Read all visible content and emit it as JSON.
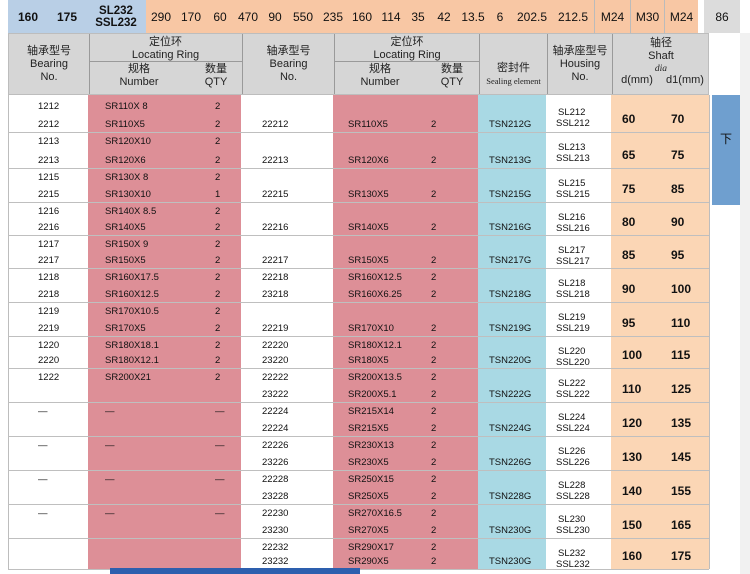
{
  "top_strip": {
    "cells": [
      "160",
      "175",
      "SL232",
      "SSL232",
      "290",
      "170",
      "60",
      "470",
      "90",
      "550",
      "235",
      "160",
      "114",
      "35",
      "42",
      "13.5",
      "6",
      "202.5",
      "212.5",
      "M24",
      "M30",
      "M24",
      "86"
    ]
  },
  "header": {
    "bearing_cn": "轴承型号",
    "bearing_en_1": "Bearing",
    "bearing_en_2": "No.",
    "ring_cn": "定位环",
    "ring_en": "Locating Ring",
    "spec_cn": "规格",
    "spec_en": "Number",
    "qty_cn": "数量",
    "qty_en": "QTY",
    "bearing2_cn": "轴承型号",
    "bearing2_en_1": "Bearing",
    "bearing2_en_2": "No.",
    "ring2_cn": "定位环",
    "ring2_en": "Locating Ring",
    "spec2_cn": "规格",
    "spec2_en": "Number",
    "qty2_cn": "数量",
    "qty2_en": "QTY",
    "seal_cn": "密封件",
    "seal_en": "Sealing element",
    "housing_cn": "轴承座型号",
    "housing_en_1": "Housing",
    "housing_en_2": "No.",
    "shaft_cn": "轴径",
    "shaft_en": "Shaft",
    "shaft_dia": "dia",
    "shaft_d": "d(mm)",
    "shaft_d1": "d1(mm)"
  },
  "sidebar_label": "下",
  "rows": [
    {
      "b1a": "1212",
      "r1a": "SR110X 8",
      "q1a": "2",
      "b1b": "2212",
      "r1b": "SR110X5",
      "q1b": "2",
      "b2a": "",
      "r2a": "",
      "q2a": "",
      "b2b": "22212",
      "r2b": "SR110X5",
      "q2b": "2",
      "seal": "TSN212G",
      "h1": "SL212",
      "h2": "SSL212",
      "d": "60",
      "d1": "70"
    },
    {
      "b1a": "1213",
      "r1a": "SR120X10",
      "q1a": "2",
      "b1b": "2213",
      "r1b": "SR120X6",
      "q1b": "2",
      "b2a": "",
      "r2a": "",
      "q2a": "",
      "b2b": "22213",
      "r2b": "SR120X6",
      "q2b": "2",
      "seal": "TSN213G",
      "h1": "SL213",
      "h2": "SSL213",
      "d": "65",
      "d1": "75"
    },
    {
      "b1a": "1215",
      "r1a": "SR130X 8",
      "q1a": "2",
      "b1b": "2215",
      "r1b": "SR130X10",
      "q1b": "1",
      "b2a": "",
      "r2a": "",
      "q2a": "",
      "b2b": "22215",
      "r2b": "SR130X5",
      "q2b": "2",
      "seal": "TSN215G",
      "h1": "SL215",
      "h2": "SSL215",
      "d": "75",
      "d1": "85"
    },
    {
      "b1a": "1216",
      "r1a": "SR140X 8.5",
      "q1a": "2",
      "b1b": "2216",
      "r1b": "SR140X5",
      "q1b": "2",
      "b2a": "",
      "r2a": "",
      "q2a": "",
      "b2b": "22216",
      "r2b": "SR140X5",
      "q2b": "2",
      "seal": "TSN216G",
      "h1": "SL216",
      "h2": "SSL216",
      "d": "80",
      "d1": "90"
    },
    {
      "b1a": "1217",
      "r1a": "SR150X 9",
      "q1a": "2",
      "b1b": "2217",
      "r1b": "SR150X5",
      "q1b": "2",
      "b2a": "",
      "r2a": "",
      "q2a": "",
      "b2b": "22217",
      "r2b": "SR150X5",
      "q2b": "2",
      "seal": "TSN217G",
      "h1": "SL217",
      "h2": "SSL217",
      "d": "85",
      "d1": "95"
    },
    {
      "b1a": "1218",
      "r1a": "SR160X17.5",
      "q1a": "2",
      "b1b": "2218",
      "r1b": "SR160X12.5",
      "q1b": "2",
      "b2a": "22218",
      "r2a": "SR160X12.5",
      "q2a": "2",
      "b2b": "23218",
      "r2b": "SR160X6.25",
      "q2b": "2",
      "seal": "TSN218G",
      "h1": "SL218",
      "h2": "SSL218",
      "d": "90",
      "d1": "100"
    },
    {
      "b1a": "1219",
      "r1a": "SR170X10.5",
      "q1a": "2",
      "b1b": "2219",
      "r1b": "SR170X5",
      "q1b": "2",
      "b2a": "",
      "r2a": "",
      "q2a": "",
      "b2b": "22219",
      "r2b": "SR170X10",
      "q2b": "2",
      "seal": "TSN219G",
      "h1": "SL219",
      "h2": "SSL219",
      "d": "95",
      "d1": "110"
    },
    {
      "b1a": "1220",
      "r1a": "SR180X18.1",
      "q1a": "2",
      "b1b": "2220",
      "r1b": "SR180X12.1",
      "q1b": "2",
      "b2a": "22220",
      "r2a": "SR180X12.1",
      "q2a": "2",
      "b2b": "23220",
      "r2b": "SR180X5",
      "q2b": "2",
      "seal": "TSN220G",
      "h1": "SL220",
      "h2": "SSL220",
      "d": "100",
      "d1": "115"
    },
    {
      "b1a": "1222",
      "r1a": "SR200X21",
      "q1a": "2",
      "b1b": "",
      "r1b": "",
      "q1b": "",
      "b2a": "22222",
      "r2a": "SR200X13.5",
      "q2a": "2",
      "b2b": "23222",
      "r2b": "SR200X5.1",
      "q2b": "2",
      "seal": "TSN222G",
      "h1": "SL222",
      "h2": "SSL222",
      "d": "110",
      "d1": "125"
    },
    {
      "b1a": "—",
      "r1a": "—",
      "q1a": "—",
      "b1b": "",
      "r1b": "",
      "q1b": "",
      "b2a": "22224",
      "r2a": "SR215X14",
      "q2a": "2",
      "b2b": "22224",
      "r2b": "SR215X5",
      "q2b": "2",
      "seal": "TSN224G",
      "h1": "SL224",
      "h2": "SSL224",
      "d": "120",
      "d1": "135"
    },
    {
      "b1a": "—",
      "r1a": "—",
      "q1a": "—",
      "b1b": "",
      "r1b": "",
      "q1b": "",
      "b2a": "22226",
      "r2a": "SR230X13",
      "q2a": "2",
      "b2b": "23226",
      "r2b": "SR230X5",
      "q2b": "2",
      "seal": "TSN226G",
      "h1": "SL226",
      "h2": "SSL226",
      "d": "130",
      "d1": "145"
    },
    {
      "b1a": "—",
      "r1a": "—",
      "q1a": "—",
      "b1b": "",
      "r1b": "",
      "q1b": "",
      "b2a": "22228",
      "r2a": "SR250X15",
      "q2a": "2",
      "b2b": "23228",
      "r2b": "SR250X5",
      "q2b": "2",
      "seal": "TSN228G",
      "h1": "SL228",
      "h2": "SSL228",
      "d": "140",
      "d1": "155"
    },
    {
      "b1a": "—",
      "r1a": "—",
      "q1a": "—",
      "b1b": "",
      "r1b": "",
      "q1b": "",
      "b2a": "22230",
      "r2a": "SR270X16.5",
      "q2a": "2",
      "b2b": "23230",
      "r2b": "SR270X5",
      "q2b": "2",
      "seal": "TSN230G",
      "h1": "SL230",
      "h2": "SSL230",
      "d": "150",
      "d1": "165"
    },
    {
      "b1a": "",
      "r1a": "",
      "q1a": "",
      "b1b": "",
      "r1b": "",
      "q1b": "",
      "b2a": "22232",
      "r2a": "SR290X17",
      "q2a": "2",
      "b2b": "23232",
      "r2b": "SR290X5",
      "q2b": "2",
      "seal": "TSN230G",
      "h1": "SL232",
      "h2": "SSL232",
      "d": "160",
      "d1": "175"
    }
  ]
}
